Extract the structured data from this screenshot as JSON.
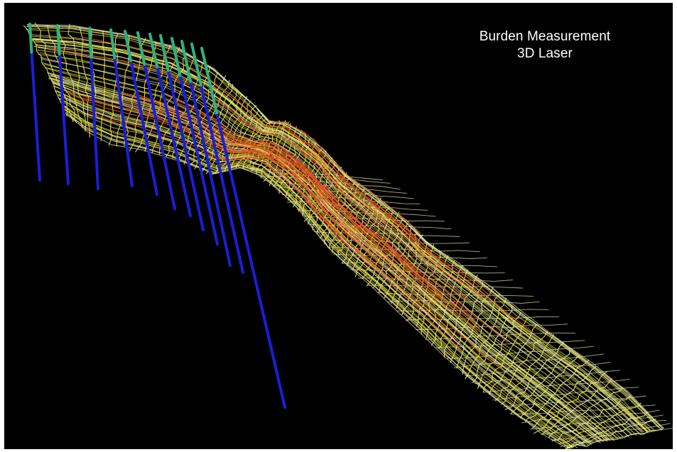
{
  "overlay": {
    "title_line1": "Burden Measurement",
    "title_line2": "3D Laser"
  },
  "colors": {
    "background": "#000000",
    "scan_primary": "#e8e23a",
    "scan_pale": "#e4e6a8",
    "scan_secondary": "#d9531e",
    "borehole": "#1a1fd6",
    "borehole_collar": "#2fb37a"
  },
  "scene_layers": [
    {
      "name": "face-profile-lines",
      "color_key": "scan_primary"
    },
    {
      "name": "break-lines",
      "color_key": "scan_secondary"
    },
    {
      "name": "blast-holes",
      "color_key": "borehole"
    },
    {
      "name": "hole-collars",
      "color_key": "borehole_collar"
    }
  ]
}
